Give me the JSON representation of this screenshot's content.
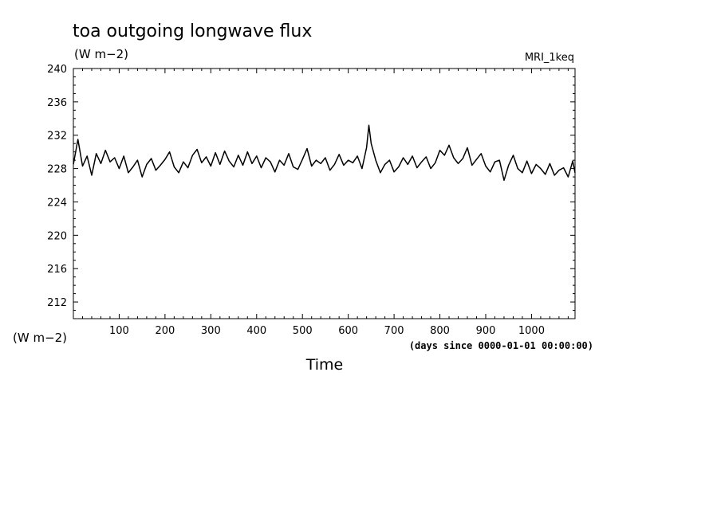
{
  "title": "toa outgoing longwave flux",
  "units": "(W m−2)",
  "model": "MRI_1keq",
  "left_units": "(W m−2)",
  "x_axis_label": "Time",
  "x_units_label": "(days since 0000-01-01 00:00:00)",
  "colors": {
    "line": "#000000",
    "background": "#ffffff"
  },
  "chart_data": {
    "type": "line",
    "title": "toa outgoing longwave flux",
    "xlabel": "Time",
    "ylabel": "(W m−2)",
    "xlim": [
      0,
      1095
    ],
    "ylim": [
      210,
      240
    ],
    "xticks": [
      100,
      200,
      300,
      400,
      500,
      600,
      700,
      800,
      900,
      1000
    ],
    "yticks": [
      212,
      216,
      220,
      224,
      228,
      232,
      236,
      240
    ],
    "grid": false,
    "series": [
      {
        "name": "MRI_1keq",
        "x": [
          0,
          10,
          20,
          30,
          40,
          50,
          60,
          70,
          80,
          90,
          100,
          110,
          120,
          130,
          140,
          150,
          160,
          170,
          180,
          190,
          200,
          210,
          220,
          230,
          240,
          250,
          260,
          270,
          280,
          290,
          300,
          310,
          320,
          330,
          340,
          350,
          360,
          370,
          380,
          390,
          400,
          410,
          420,
          430,
          440,
          450,
          460,
          470,
          480,
          490,
          500,
          510,
          520,
          530,
          540,
          550,
          560,
          570,
          580,
          590,
          600,
          610,
          620,
          630,
          640,
          645,
          650,
          660,
          670,
          680,
          690,
          700,
          710,
          720,
          730,
          740,
          750,
          760,
          770,
          780,
          790,
          800,
          810,
          820,
          830,
          840,
          850,
          860,
          870,
          880,
          890,
          900,
          910,
          920,
          930,
          940,
          950,
          960,
          970,
          980,
          990,
          1000,
          1010,
          1020,
          1030,
          1040,
          1050,
          1060,
          1070,
          1080,
          1090,
          1095
        ],
        "y": [
          228.5,
          231.5,
          228.3,
          229.5,
          227.2,
          229.8,
          228.6,
          230.2,
          228.8,
          229.3,
          228.0,
          229.5,
          227.5,
          228.2,
          229.0,
          227.0,
          228.5,
          229.2,
          227.8,
          228.4,
          229.1,
          230.0,
          228.2,
          227.5,
          228.8,
          228.1,
          229.6,
          230.3,
          228.7,
          229.4,
          228.3,
          229.9,
          228.5,
          230.1,
          228.9,
          228.2,
          229.6,
          228.4,
          230.0,
          228.6,
          229.5,
          228.1,
          229.3,
          228.8,
          227.6,
          229.0,
          228.4,
          229.8,
          228.2,
          227.9,
          229.1,
          230.4,
          228.3,
          229.0,
          228.6,
          229.3,
          227.8,
          228.5,
          229.7,
          228.4,
          229.0,
          228.7,
          229.5,
          228.0,
          230.5,
          233.2,
          231.0,
          229.0,
          227.5,
          228.5,
          229.0,
          227.6,
          228.2,
          229.3,
          228.5,
          229.5,
          228.1,
          228.8,
          229.4,
          228.0,
          228.7,
          230.2,
          229.6,
          230.8,
          229.3,
          228.6,
          229.2,
          230.5,
          228.4,
          229.1,
          229.8,
          228.3,
          227.6,
          228.8,
          229.0,
          226.6,
          228.4,
          229.6,
          228.0,
          227.5,
          228.9,
          227.4,
          228.5,
          228.0,
          227.3,
          228.6,
          227.2,
          227.8,
          228.1,
          227.0,
          228.9,
          227.5
        ]
      }
    ]
  }
}
